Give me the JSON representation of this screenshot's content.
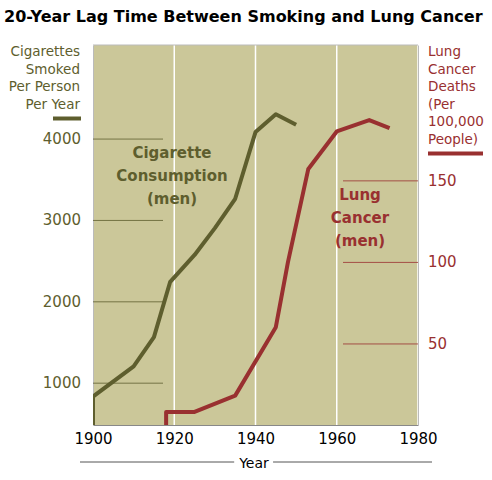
{
  "chart_data": {
    "type": "line",
    "title": "20-Year Lag Time Between Smoking and Lung Cancer",
    "x_label": "Year",
    "y_label": "Cigarettes\nSmoked\nPer Person\nPer Year",
    "y2_label": "Lung\nCancer\nDeaths\n(Per\n100,000\nPeople)",
    "xlim": [
      1900,
      1980
    ],
    "xticks": [
      1900,
      1920,
      1940,
      1960,
      1980
    ],
    "ylim": [
      480,
      5150
    ],
    "yticks": [
      1000,
      2000,
      3000,
      4000
    ],
    "y2lim": [
      0,
      233
    ],
    "y2ticks": [
      50,
      100,
      150
    ],
    "grid": true,
    "series": [
      {
        "name": "Cigarette Consumption (men)",
        "color": "#5e5e2e",
        "x": [
          1900,
          1900,
          1910,
          1915,
          1919,
          1925,
          1930,
          1935,
          1940,
          1945,
          1950
        ],
        "values": [
          480,
          830,
          1200,
          1560,
          2240,
          2570,
          2900,
          3260,
          4080,
          4300,
          4170
        ]
      },
      {
        "name": "Lung Cancer (men)",
        "color": "#993030",
        "axis": "y2",
        "x": [
          1918,
          1918,
          1925,
          1935,
          1945,
          1948,
          1953,
          1960,
          1968,
          1973
        ],
        "values": [
          0,
          8,
          8,
          18,
          60,
          100,
          157,
          180,
          187,
          182
        ]
      }
    ]
  }
}
